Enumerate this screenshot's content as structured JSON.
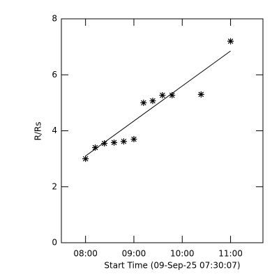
{
  "chart_data": {
    "type": "scatter",
    "x_label": "Start Time (09-Sep-25 07:30:07)",
    "y_label": "R/Rs",
    "x": [
      8.0,
      8.2,
      8.39,
      8.59,
      8.79,
      9.0,
      9.2,
      9.39,
      9.59,
      9.79,
      10.39,
      11.0
    ],
    "values": [
      3.0,
      3.4,
      3.55,
      3.58,
      3.62,
      3.7,
      5.0,
      5.07,
      5.27,
      5.27,
      5.3,
      7.2
    ],
    "color": "#000000",
    "fit": {
      "x": [
        8.0,
        11.0
      ],
      "y": [
        3.1,
        6.85
      ]
    },
    "xlim": [
      7.5,
      11.67
    ],
    "xticks": [
      {
        "value": 8,
        "label": "08:00"
      },
      {
        "value": 9,
        "label": "09:00"
      },
      {
        "value": 10,
        "label": "10:00"
      },
      {
        "value": 11,
        "label": "11:00"
      }
    ],
    "ylim": [
      0,
      8
    ],
    "yticks": [
      0,
      2,
      4,
      6,
      8
    ]
  }
}
